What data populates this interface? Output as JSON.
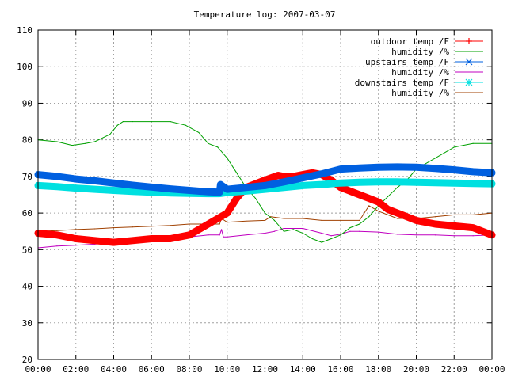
{
  "chart_data": {
    "type": "line",
    "title": "Temperature log: 2007-03-07",
    "xlabel": "",
    "ylabel": "",
    "xlim": [
      0,
      24
    ],
    "ylim": [
      20,
      110
    ],
    "grid": true,
    "legend_position": "top-right",
    "x_ticks": [
      "00:00",
      "02:00",
      "04:00",
      "06:00",
      "08:00",
      "10:00",
      "12:00",
      "14:00",
      "16:00",
      "18:00",
      "20:00",
      "22:00",
      "00:00"
    ],
    "y_ticks": [
      "20",
      "30",
      "40",
      "50",
      "60",
      "70",
      "80",
      "90",
      "100",
      "110"
    ],
    "series": [
      {
        "name": "outdoor temp /F",
        "color": "#ff0000",
        "marker": "plus",
        "points": [
          [
            0,
            54.5
          ],
          [
            1,
            54
          ],
          [
            2,
            53
          ],
          [
            3,
            52.5
          ],
          [
            4,
            52
          ],
          [
            5,
            52.5
          ],
          [
            6,
            53
          ],
          [
            7,
            53
          ],
          [
            8,
            54
          ],
          [
            9,
            57
          ],
          [
            10,
            60
          ],
          [
            10.5,
            64
          ],
          [
            11,
            67
          ],
          [
            12,
            69
          ],
          [
            12.7,
            70.3
          ],
          [
            13,
            70
          ],
          [
            13.5,
            70
          ],
          [
            14,
            70.5
          ],
          [
            14.5,
            71
          ],
          [
            15,
            70.5
          ],
          [
            15.5,
            69
          ],
          [
            16,
            67
          ],
          [
            17,
            65
          ],
          [
            18,
            63
          ],
          [
            18.5,
            61
          ],
          [
            19,
            60
          ],
          [
            20,
            58
          ],
          [
            21,
            57
          ],
          [
            22,
            56.5
          ],
          [
            23,
            56
          ],
          [
            23.5,
            55
          ],
          [
            24,
            54
          ]
        ]
      },
      {
        "name": "humidity /%",
        "color": "#00a000",
        "marker": "none",
        "points": [
          [
            0,
            80
          ],
          [
            1,
            79.5
          ],
          [
            1.8,
            78.5
          ],
          [
            2.5,
            79
          ],
          [
            3,
            79.5
          ],
          [
            3.8,
            81.5
          ],
          [
            4.2,
            84
          ],
          [
            4.5,
            85
          ],
          [
            5,
            85
          ],
          [
            6,
            85
          ],
          [
            7,
            85
          ],
          [
            7.8,
            84
          ],
          [
            8.5,
            82
          ],
          [
            9,
            79
          ],
          [
            9.5,
            78
          ],
          [
            10,
            75
          ],
          [
            10.5,
            71
          ],
          [
            11,
            67
          ],
          [
            11.5,
            64
          ],
          [
            12,
            60
          ],
          [
            12.5,
            58
          ],
          [
            13,
            55
          ],
          [
            13.5,
            55.5
          ],
          [
            14,
            54.5
          ],
          [
            14.5,
            53
          ],
          [
            15,
            52
          ],
          [
            15.5,
            53
          ],
          [
            16,
            54
          ],
          [
            16.5,
            56
          ],
          [
            17,
            57
          ],
          [
            17.5,
            59
          ],
          [
            18,
            62
          ],
          [
            18.5,
            64.5
          ],
          [
            19,
            67
          ],
          [
            19.5,
            69
          ],
          [
            20,
            72
          ],
          [
            21,
            75
          ],
          [
            22,
            78
          ],
          [
            23,
            79
          ],
          [
            24,
            79
          ]
        ]
      },
      {
        "name": "upstairs temp /F",
        "color": "#0060e0",
        "marker": "x",
        "points": [
          [
            0,
            70.5
          ],
          [
            1,
            70
          ],
          [
            2,
            69.3
          ],
          [
            3,
            68.8
          ],
          [
            4,
            68.2
          ],
          [
            5,
            67.6
          ],
          [
            6,
            67.1
          ],
          [
            7,
            66.6
          ],
          [
            8,
            66.2
          ],
          [
            9,
            65.8
          ],
          [
            9.6,
            65.7
          ],
          [
            9.65,
            67.8
          ],
          [
            10,
            66.5
          ],
          [
            11,
            67
          ],
          [
            12,
            67.5
          ],
          [
            13,
            68.5
          ],
          [
            14,
            69.6
          ],
          [
            15,
            70.7
          ],
          [
            16,
            72
          ],
          [
            17,
            72.3
          ],
          [
            18,
            72.5
          ],
          [
            19,
            72.6
          ],
          [
            20,
            72.5
          ],
          [
            21,
            72.2
          ],
          [
            22,
            71.8
          ],
          [
            23,
            71.3
          ],
          [
            24,
            71
          ]
        ]
      },
      {
        "name": "humidity /%",
        "color": "#c000c0",
        "marker": "none",
        "points": [
          [
            0,
            50.5
          ],
          [
            1,
            51
          ],
          [
            2,
            51.2
          ],
          [
            3,
            51.5
          ],
          [
            4,
            52
          ],
          [
            5,
            52.5
          ],
          [
            6,
            52.8
          ],
          [
            7,
            53.2
          ],
          [
            8,
            53.5
          ],
          [
            9,
            54
          ],
          [
            9.6,
            54
          ],
          [
            9.7,
            55.5
          ],
          [
            9.8,
            53.5
          ],
          [
            10,
            53.5
          ],
          [
            11,
            54
          ],
          [
            12,
            54.5
          ],
          [
            12.5,
            55
          ],
          [
            13,
            55.8
          ],
          [
            14,
            55.8
          ],
          [
            15,
            54.5
          ],
          [
            15.5,
            53.8
          ],
          [
            16,
            54.2
          ],
          [
            16.5,
            55
          ],
          [
            17,
            55
          ],
          [
            18,
            54.8
          ],
          [
            19,
            54.2
          ],
          [
            20,
            54
          ],
          [
            21,
            54
          ],
          [
            22,
            53.8
          ],
          [
            23,
            53.8
          ],
          [
            24,
            54
          ]
        ]
      },
      {
        "name": "downstairs temp /F",
        "color": "#00e0e0",
        "marker": "star",
        "points": [
          [
            0,
            67.5
          ],
          [
            1,
            67.2
          ],
          [
            2,
            66.8
          ],
          [
            3,
            66.5
          ],
          [
            4,
            66.2
          ],
          [
            5,
            65.9
          ],
          [
            6,
            65.7
          ],
          [
            7,
            65.5
          ],
          [
            8,
            65.4
          ],
          [
            9,
            65.3
          ],
          [
            9.6,
            65.3
          ],
          [
            10,
            65.6
          ],
          [
            11,
            66
          ],
          [
            12,
            66.5
          ],
          [
            13,
            67
          ],
          [
            14,
            67.5
          ],
          [
            15,
            67.8
          ],
          [
            16,
            68.2
          ],
          [
            17,
            68.4
          ],
          [
            18,
            68.5
          ],
          [
            19,
            68.5
          ],
          [
            20,
            68.4
          ],
          [
            21,
            68.3
          ],
          [
            22,
            68.2
          ],
          [
            23,
            68.1
          ],
          [
            24,
            68
          ]
        ]
      },
      {
        "name": "humidity /%",
        "color": "#a04000",
        "marker": "none",
        "points": [
          [
            0,
            55
          ],
          [
            1,
            55.2
          ],
          [
            2,
            55.5
          ],
          [
            3,
            55.7
          ],
          [
            4,
            56
          ],
          [
            5,
            56.2
          ],
          [
            6,
            56.4
          ],
          [
            7,
            56.6
          ],
          [
            8,
            57
          ],
          [
            9,
            57
          ],
          [
            9.6,
            57
          ],
          [
            9.7,
            58.5
          ],
          [
            10,
            57.5
          ],
          [
            11,
            57.8
          ],
          [
            12,
            58
          ],
          [
            12.3,
            59
          ],
          [
            13,
            58.5
          ],
          [
            14,
            58.5
          ],
          [
            15,
            58
          ],
          [
            16,
            58
          ],
          [
            17,
            58
          ],
          [
            17.5,
            62
          ],
          [
            18,
            60.5
          ],
          [
            18.5,
            59.5
          ],
          [
            19,
            58.5
          ],
          [
            20,
            58.5
          ],
          [
            21,
            59
          ],
          [
            22,
            59.5
          ],
          [
            23,
            59.5
          ],
          [
            24,
            60
          ]
        ]
      }
    ]
  }
}
